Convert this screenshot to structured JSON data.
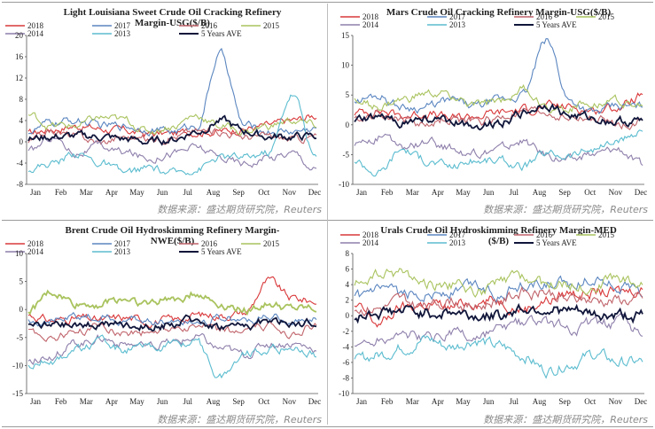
{
  "source_text": "数据来源：盛达期货研究院，Reuters",
  "months": [
    "Jan",
    "Feb",
    "Mar",
    "Apr",
    "May",
    "Jun",
    "Jul",
    "Aug",
    "Sep",
    "Oct",
    "Nov",
    "Dec"
  ],
  "legend": {
    "s2018": "2018",
    "s2017": "2017",
    "s2016": "2016",
    "s2015": "2015",
    "s2014": "2014",
    "s2013": "2013",
    "s5y": "5 Years AVE"
  },
  "colors": {
    "2018": "#d9383a",
    "2017": "#5b86c0",
    "2016": "#c0646b",
    "2015": "#a9c35e",
    "2014": "#8e7fab",
    "2013": "#5bbccf",
    "5 Years AVE": "#10163a"
  },
  "chart_data": [
    {
      "type": "line",
      "title_line1": "Light Louisiana Sweet Crude Oil Cracking Refinery",
      "title_line2": "Margin-USG($/B)",
      "ylim": [
        -8,
        20
      ],
      "yticks": [
        "20",
        "16",
        "12",
        "8",
        "4",
        "0",
        "-4",
        "-8"
      ],
      "x": [
        "Jan",
        "Feb",
        "Mar",
        "Apr",
        "May",
        "Jun",
        "Jul",
        "Aug",
        "Sep",
        "Oct",
        "Nov",
        "Dec",
        "Dec"
      ],
      "series": [
        {
          "name": "2018",
          "values": [
            1.5,
            2.5,
            3,
            2.5,
            2,
            1.5,
            1.5,
            2,
            2,
            2.5,
            3,
            4,
            5
          ]
        },
        {
          "name": "2017",
          "values": [
            2,
            3.5,
            4,
            3,
            3,
            2.5,
            2,
            3,
            16.5,
            3,
            2,
            2,
            2.5
          ]
        },
        {
          "name": "2016",
          "values": [
            0,
            2,
            1,
            0,
            1,
            0.5,
            1,
            2,
            2,
            1,
            1,
            0.5,
            1
          ]
        },
        {
          "name": "2015",
          "values": [
            5,
            3,
            3,
            4.5,
            4,
            2,
            3,
            5,
            3,
            2,
            3,
            4,
            3
          ]
        },
        {
          "name": "2014",
          "values": [
            -2,
            1,
            -2,
            -1,
            -2,
            -3,
            -2,
            -1,
            -3,
            -4,
            -3,
            -2,
            -5
          ]
        },
        {
          "name": "2013",
          "values": [
            -5,
            -4,
            -2,
            -4,
            -6,
            -5,
            -6,
            -5,
            -3,
            -3,
            -2,
            9,
            -3
          ]
        },
        {
          "name": "5 Years AVE",
          "values": [
            0.5,
            1,
            1,
            1,
            0.5,
            0,
            0.5,
            2,
            4,
            2,
            1,
            1,
            1
          ]
        }
      ]
    },
    {
      "type": "line",
      "title_line1": "Mars Crude Oil Cracking Refinery Margin-USG($/B)",
      "title_line2": "",
      "ylim": [
        -10,
        15
      ],
      "yticks": [
        "15",
        "10",
        "5",
        "0",
        "-5",
        "-10"
      ],
      "x": [
        "Jan",
        "Feb",
        "Mar",
        "Apr",
        "May",
        "Jun",
        "Jul",
        "Aug",
        "Sep",
        "Oct",
        "Nov",
        "Dec",
        "Dec"
      ],
      "series": [
        {
          "name": "2018",
          "values": [
            2,
            2.5,
            1.5,
            2,
            1,
            1.5,
            2,
            2.5,
            3,
            3,
            2.5,
            3,
            5
          ]
        },
        {
          "name": "2017",
          "values": [
            4,
            5,
            3,
            3,
            4,
            3,
            4,
            5,
            14,
            4,
            2,
            3,
            3
          ]
        },
        {
          "name": "2016",
          "values": [
            1,
            2,
            1,
            0,
            1,
            0.5,
            1,
            2,
            2,
            1,
            1,
            0,
            1
          ]
        },
        {
          "name": "2015",
          "values": [
            4,
            3,
            4,
            5,
            5,
            3,
            4,
            6,
            3,
            3,
            4,
            4,
            3
          ]
        },
        {
          "name": "2014",
          "values": [
            -3,
            -2,
            -4,
            -3,
            -4,
            -5,
            -4,
            -3,
            -5,
            -6,
            -5,
            -4,
            -7
          ]
        },
        {
          "name": "2013",
          "values": [
            -6,
            -8,
            -4,
            -6,
            -7,
            -6,
            -6,
            -7,
            -5,
            -5,
            -4,
            -3,
            -1
          ]
        },
        {
          "name": "5 Years AVE",
          "values": [
            0.5,
            1,
            0.5,
            1,
            0.5,
            0,
            0.5,
            2,
            3.5,
            1.5,
            1,
            0.5,
            0.5
          ]
        }
      ]
    },
    {
      "type": "line",
      "title_line1": "Brent Crude Oil Hydroskimming Refinery Margin-",
      "title_line2": "NWE($/B)",
      "ylim": [
        -15,
        10
      ],
      "yticks": [
        "10",
        "5",
        "0",
        "-5",
        "-10",
        "-15"
      ],
      "x": [
        "Jan",
        "Feb",
        "Mar",
        "Apr",
        "May",
        "Jun",
        "Jul",
        "Aug",
        "Sep",
        "Oct",
        "Nov",
        "Dec",
        "Dec"
      ],
      "series": [
        {
          "name": "2018",
          "values": [
            -1,
            -2,
            -1.5,
            -2,
            -1.5,
            -2,
            -2,
            -1,
            -1,
            -0.5,
            5,
            2,
            1.5
          ]
        },
        {
          "name": "2017",
          "values": [
            -2,
            -2,
            -1.5,
            -1.5,
            -2,
            -2,
            -2,
            -2,
            -1.5,
            -2,
            -1.5,
            -2,
            -2
          ]
        },
        {
          "name": "2016",
          "values": [
            -4,
            -5,
            -4,
            -3,
            -4,
            -4,
            -3,
            -3,
            -4,
            -4,
            -3,
            -4,
            -3
          ]
        },
        {
          "name": "2015",
          "values": [
            0,
            3,
            1,
            1,
            2,
            1,
            2,
            3,
            1,
            0,
            1,
            0,
            0
          ]
        },
        {
          "name": "2014",
          "values": [
            -9,
            -8,
            -6,
            -5,
            -6,
            -7,
            -6,
            -5,
            -7,
            -8,
            -6,
            -6,
            -7
          ]
        },
        {
          "name": "2013",
          "values": [
            -10,
            -9,
            -7,
            -6,
            -7,
            -7,
            -6,
            -6,
            -12,
            -8,
            -7,
            -7,
            -8
          ]
        },
        {
          "name": "5 Years AVE",
          "values": [
            -3,
            -3,
            -3,
            -2.5,
            -3,
            -3,
            -2.5,
            -2,
            -3,
            -3,
            -2,
            -2.5,
            -2.5
          ]
        }
      ]
    },
    {
      "type": "line",
      "title_line1": "Urals Crude Oil Hydroskimming Refinery Margin-MED",
      "title_line2": "($/B)",
      "ylim": [
        -10,
        8
      ],
      "yticks": [
        "8",
        "6",
        "4",
        "2",
        "0",
        "-2",
        "-4",
        "-6",
        "-8",
        "-10"
      ],
      "x": [
        "Jan",
        "Feb",
        "Mar",
        "Apr",
        "May",
        "Jun",
        "Jul",
        "Aug",
        "Sep",
        "Oct",
        "Nov",
        "Dec",
        "Dec"
      ],
      "series": [
        {
          "name": "2018",
          "values": [
            1,
            -1,
            1,
            1.5,
            1,
            2,
            2,
            1,
            2,
            3,
            3,
            3,
            3.5
          ]
        },
        {
          "name": "2017",
          "values": [
            2,
            3,
            2.5,
            3,
            3,
            4,
            3,
            4,
            4,
            4,
            5,
            4,
            3
          ]
        },
        {
          "name": "2016",
          "values": [
            1,
            1,
            2,
            1,
            2,
            1,
            2,
            3,
            3,
            2,
            2,
            2,
            2
          ]
        },
        {
          "name": "2015",
          "values": [
            4,
            5,
            5.5,
            4,
            4,
            3,
            4,
            5,
            4,
            4,
            4,
            5,
            4
          ]
        },
        {
          "name": "2014",
          "values": [
            -4,
            -3,
            -2,
            -3,
            -2,
            -3,
            -2,
            -1,
            -1,
            -2,
            -1,
            -1,
            -2
          ]
        },
        {
          "name": "2013",
          "values": [
            -6,
            -5,
            -4,
            -3,
            -4,
            -3,
            -4,
            -5,
            -7,
            -6,
            -5,
            -6,
            -6
          ]
        },
        {
          "name": "5 Years AVE",
          "values": [
            0,
            0.5,
            0.5,
            0.5,
            0.5,
            0,
            0,
            1,
            1,
            0.5,
            0,
            0,
            0
          ]
        }
      ]
    }
  ]
}
